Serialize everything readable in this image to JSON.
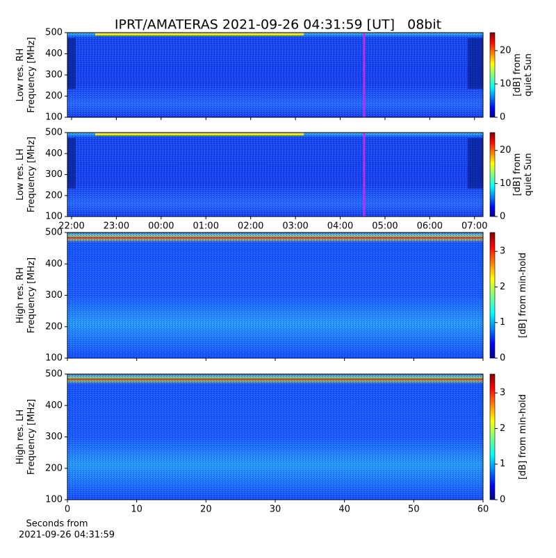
{
  "title": "IPRT/AMATERAS 2021-09-26 04:31:59 [UT]   08bit",
  "x_label": [
    "Seconds from",
    "2021-09-26 04:31:59"
  ],
  "chart_data": [
    {
      "type": "spectrogram",
      "ylabel": [
        "Low res. RH",
        "Frequency [MHz]"
      ],
      "ylim": [
        100,
        500
      ],
      "yticks": [
        100,
        200,
        300,
        400,
        500
      ],
      "xlim": [
        -0.093,
        9.19
      ],
      "marker": 6.533,
      "marker_color": "#e020e0",
      "colorbar": {
        "label": [
          "[dB] from",
          "quiet Sun"
        ],
        "lim": [
          0,
          25.4
        ],
        "ticks": [
          0,
          10,
          20
        ]
      }
    },
    {
      "type": "spectrogram",
      "ylabel": [
        "Low res. LH",
        "Frequency [MHz]"
      ],
      "ylim": [
        100,
        500
      ],
      "yticks": [
        100,
        200,
        300,
        400,
        500
      ],
      "xlim": [
        -0.093,
        9.19
      ],
      "marker": 6.533,
      "marker_color": "#e020e0",
      "xticks": [
        {
          "value": 0,
          "label": "22:00"
        },
        {
          "value": 1,
          "label": "23:00"
        },
        {
          "value": 2,
          "label": "00:00"
        },
        {
          "value": 3,
          "label": "01:00"
        },
        {
          "value": 4,
          "label": "02:00"
        },
        {
          "value": 5,
          "label": "03:00"
        },
        {
          "value": 6,
          "label": "04:00"
        },
        {
          "value": 7,
          "label": "05:00"
        },
        {
          "value": 8,
          "label": "06:00"
        },
        {
          "value": 9,
          "label": "07:00"
        }
      ],
      "colorbar": {
        "label": [
          "[dB] from",
          "quiet Sun"
        ],
        "lim": [
          0,
          25.4
        ],
        "ticks": [
          0,
          10,
          20
        ]
      }
    },
    {
      "type": "spectrogram",
      "ylabel": [
        "High res. RH",
        "Frequency [MHz]"
      ],
      "ylim": [
        100,
        500
      ],
      "yticks": [
        100,
        200,
        300,
        400,
        500
      ],
      "xlim": [
        0,
        60
      ],
      "colorbar": {
        "label": [
          "[dB] from min-hold"
        ],
        "lim": [
          0,
          3.53
        ],
        "ticks": [
          0,
          1,
          2,
          3
        ]
      }
    },
    {
      "type": "spectrogram",
      "ylabel": [
        "High res. LH",
        "Frequency [MHz]"
      ],
      "ylim": [
        100,
        500
      ],
      "yticks": [
        100,
        200,
        300,
        400,
        500
      ],
      "xlim": [
        0,
        60
      ],
      "xticks": [
        0,
        10,
        20,
        30,
        40,
        50,
        60
      ],
      "colorbar": {
        "label": [
          "[dB] from min-hold"
        ],
        "lim": [
          0,
          3.53
        ],
        "ticks": [
          0,
          1,
          2,
          3
        ]
      }
    }
  ]
}
